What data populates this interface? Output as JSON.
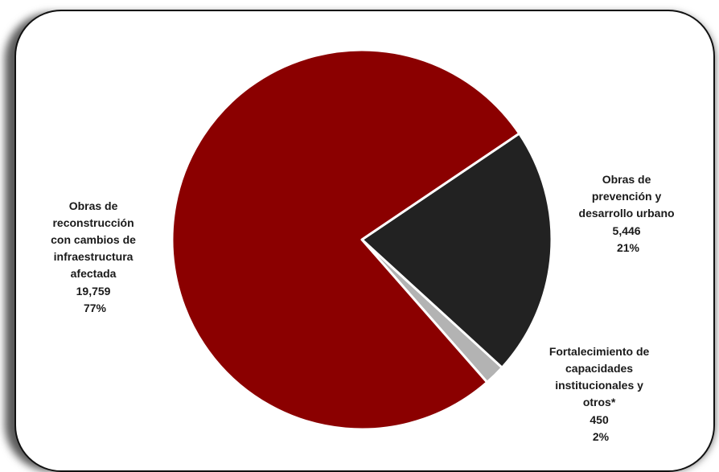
{
  "chart_data": {
    "type": "pie",
    "title": "",
    "slices": [
      {
        "name": "Obras de prevención y desarrollo urbano",
        "label_lines": [
          "Obras de",
          "prevención y",
          "desarrollo urbano"
        ],
        "value": 5446,
        "value_text": "5,446",
        "percent": 21,
        "percent_text": "21%",
        "color": "#222222"
      },
      {
        "name": "Fortalecimiento de capacidades institucionales y otros*",
        "label_lines": [
          "Fortalecimiento de",
          "capacidades",
          "institucionales y",
          "otros*"
        ],
        "value": 450,
        "value_text": "450",
        "percent": 2,
        "percent_text": "2%",
        "color": "#b3b3b3"
      },
      {
        "name": "Obras de reconstrucción con cambios de infraestructura afectada",
        "label_lines": [
          "Obras de",
          "reconstrucción",
          "con cambios de",
          "infraestructura",
          "afectada"
        ],
        "value": 19759,
        "value_text": "19,759",
        "percent": 77,
        "percent_text": "77%",
        "color": "#8b0000"
      }
    ],
    "start_angle_deg": 56,
    "direction": "clockwise",
    "legend": "none"
  }
}
